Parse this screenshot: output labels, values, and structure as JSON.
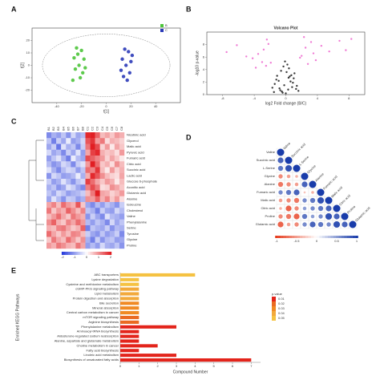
{
  "chart_data": [
    {
      "type": "scatter",
      "panel": "A",
      "xlabel": "t[1]",
      "ylabel": "t[2]",
      "xlim": [
        -60,
        60
      ],
      "ylim": [
        -30,
        30
      ],
      "xticks": [
        -40,
        -20,
        0,
        20,
        40
      ],
      "yticks": [
        -20,
        -10,
        0,
        10,
        20
      ],
      "series": [
        {
          "name": "B",
          "color": "#4cc43a",
          "x": [
            -24,
            -20,
            -26,
            -18,
            -22,
            -25,
            -19,
            -21,
            -27,
            -23,
            -17
          ],
          "y": [
            14,
            12,
            6,
            5,
            0,
            -3,
            -6,
            -10,
            -12,
            9,
            -2
          ]
        },
        {
          "name": "C",
          "color": "#2b3ab8",
          "x": [
            15,
            18,
            13,
            20,
            16,
            12,
            19,
            14,
            17,
            21
          ],
          "y": [
            13,
            11,
            5,
            3,
            0,
            -4,
            -6,
            -9,
            -12,
            8
          ]
        }
      ]
    },
    {
      "type": "scatter",
      "panel": "B",
      "title": "Volcano Plot",
      "xlabel": "log2 Fold change (B/C)",
      "ylabel": "-log10 p-value",
      "xlim": [
        -10,
        10
      ],
      "ylim": [
        0,
        10
      ],
      "xticks": [
        -8,
        -4,
        0,
        4,
        8
      ],
      "yticks": [
        0,
        2,
        4,
        6,
        8
      ],
      "series": [
        {
          "name": "ns",
          "color": "#222222",
          "x": [
            -0.5,
            0.3,
            -0.2,
            0.6,
            -0.8,
            1,
            -1.1,
            0.1,
            0.4,
            -0.4,
            0.8,
            -0.9,
            1.3,
            -1.4,
            0.2,
            -0.1,
            0.7,
            -0.6,
            1.6,
            -1.7,
            0.5,
            -0.3,
            0.9,
            -1.2,
            1.1,
            0,
            -0.7,
            1.4,
            -1.5,
            0.35
          ],
          "y": [
            0.5,
            0.8,
            1.5,
            2.1,
            1,
            2.6,
            3,
            3.6,
            4.2,
            0.3,
            1.2,
            2.2,
            0.9,
            1.7,
            4.8,
            5.3,
            3.1,
            3.8,
            0.6,
            1.1,
            2.9,
            4.5,
            1.9,
            2.4,
            3.4,
            0.2,
            0.7,
            1.4,
            0.4,
            2.7
          ]
        },
        {
          "name": "sig",
          "color": "#ee6fd0",
          "x": [
            -3.5,
            -2.8,
            -4.2,
            -2.2,
            -5,
            -3,
            -2.5,
            -6.2,
            -7.5,
            2.5,
            3.2,
            2,
            3.8,
            4.5,
            5.5,
            6.8,
            2.8,
            7.6,
            8.3,
            1.8,
            -1.9,
            2.3,
            -2.4,
            3.5,
            -3.8
          ],
          "y": [
            6.5,
            7.2,
            5.8,
            8.1,
            6.1,
            5.2,
            4.6,
            7.9,
            6.8,
            7.5,
            8.4,
            6.2,
            5.5,
            7.8,
            6.9,
            8.6,
            4.9,
            7.1,
            8.9,
            5.9,
            5.1,
            9.2,
            8.8,
            6.6,
            4.3
          ]
        }
      ]
    },
    {
      "type": "heatmap",
      "panel": "C",
      "columns": [
        "B1",
        "B2",
        "B3",
        "B4",
        "B5",
        "B6",
        "B7",
        "B8",
        "C1",
        "C2",
        "C3",
        "C4",
        "C5",
        "C6",
        "C7",
        "C8"
      ],
      "rows": [
        "Nicotinic acid",
        "Glycerol",
        "Malic acid",
        "Pyruvic acid",
        "Fumaric acid",
        "Citric acid",
        "Succinic acid",
        "Lactic acid",
        "Glucose 6-phosphate",
        "Aconitic acid",
        "Glutamic acid",
        "Alanine",
        "Isoleucine",
        "Cholesterol",
        "Valine",
        "Phenylalanine",
        "Serine",
        "Tyrosine",
        "Glycine",
        "Proline"
      ],
      "clim": [
        -2,
        2
      ],
      "cticks": [
        -2,
        -1,
        0,
        1,
        2
      ],
      "values": [
        [
          -1.2,
          -0.8,
          -1,
          -0.6,
          -1.1,
          -0.4,
          -0.9,
          -0.7,
          1.9,
          2,
          1.4,
          0.6,
          0.8,
          0.5,
          0.9,
          0.7
        ],
        [
          -0.6,
          -1.3,
          -0.5,
          -0.9,
          -0.2,
          -1,
          -0.8,
          -0.4,
          1.5,
          1.8,
          0.9,
          1.2,
          0.3,
          0.7,
          0.6,
          0.4
        ],
        [
          -0.9,
          -0.5,
          -1.4,
          -0.3,
          -0.8,
          -0.6,
          -1.2,
          -0.5,
          1.2,
          2,
          1.6,
          0.4,
          0.9,
          0.2,
          0.8,
          0.5
        ],
        [
          -0.4,
          -0.9,
          -0.7,
          -1.2,
          -0.5,
          -0.9,
          -0.3,
          -1,
          0.8,
          1.7,
          1.9,
          0.7,
          0.5,
          0.6,
          0.3,
          0.9
        ],
        [
          -1,
          -0.6,
          -0.3,
          -0.8,
          -1.3,
          -0.2,
          -0.7,
          -0.9,
          1.6,
          1.4,
          1.1,
          0.9,
          0.4,
          0.8,
          0.5,
          0.2
        ],
        [
          -0.7,
          -1.1,
          -0.9,
          -0.4,
          -0.6,
          -1.2,
          -0.5,
          -0.3,
          0.9,
          2,
          1.3,
          0.5,
          0.7,
          0.3,
          1,
          0.6
        ],
        [
          -0.3,
          -0.8,
          -1.2,
          -0.7,
          -0.4,
          -0.5,
          -1,
          -0.6,
          1.3,
          1.1,
          1.8,
          0.6,
          0.2,
          0.9,
          0.4,
          0.7
        ],
        [
          -1.1,
          -0.4,
          -0.6,
          -1,
          -0.9,
          -0.7,
          -0.2,
          -0.8,
          0.7,
          1.9,
          1.5,
          1,
          0.6,
          0.4,
          0.3,
          0.8
        ],
        [
          -0.5,
          -1,
          -0.8,
          -0.3,
          -0.7,
          -1.1,
          -0.6,
          -0.4,
          1.7,
          1.3,
          0.8,
          0.5,
          0.9,
          0.7,
          0.2,
          0.6
        ],
        [
          -0.8,
          -0.6,
          -1.1,
          -0.9,
          -0.3,
          -0.5,
          -0.9,
          -1.2,
          1.1,
          1.6,
          1.2,
          0.3,
          0.4,
          1,
          0.8,
          0.5
        ],
        [
          -0.6,
          -0.9,
          -0.4,
          -0.6,
          -1,
          -0.8,
          -0.7,
          -0.5,
          0.6,
          1.2,
          2,
          0.8,
          0.7,
          0.4,
          0.6,
          0.9
        ],
        [
          -0.9,
          -0.3,
          -0.7,
          -1.1,
          -0.5,
          -0.6,
          -1,
          -0.8,
          1,
          0.9,
          1.4,
          0.7,
          1.1,
          0.5,
          0.9,
          0.3
        ],
        [
          0.8,
          1.1,
          0.6,
          1.3,
          0.9,
          0.7,
          1.5,
          0.5,
          -0.9,
          -1.2,
          -0.7,
          -1,
          -0.6,
          -0.8,
          -1.1,
          -0.5
        ],
        [
          1.2,
          0.5,
          0.9,
          0.7,
          1.4,
          1,
          0.6,
          1.1,
          -0.6,
          -0.8,
          -1.3,
          -0.5,
          -0.9,
          -1,
          -0.4,
          -0.7
        ],
        [
          0.6,
          0.9,
          1.3,
          0.8,
          0.5,
          1.2,
          0.9,
          0.7,
          -1.1,
          -0.5,
          -0.9,
          -1.2,
          -0.3,
          -0.7,
          -0.8,
          -1
        ],
        [
          1,
          1.4,
          0.7,
          0.5,
          1.1,
          0.8,
          1.3,
          0.9,
          -0.7,
          -1,
          -0.6,
          -0.8,
          -1.2,
          -0.4,
          -0.9,
          -0.6
        ],
        [
          0.7,
          0.6,
          1.1,
          1.2,
          0.8,
          0.5,
          0.7,
          1.4,
          -1.3,
          -0.6,
          -0.8,
          -0.9,
          -0.5,
          -1.1,
          -0.7,
          -0.8
        ],
        [
          1.3,
          0.8,
          0.5,
          0.9,
          0.6,
          1.1,
          1,
          0.6,
          -0.5,
          -0.9,
          -1.1,
          -0.6,
          -1,
          -0.8,
          -0.5,
          -1.2
        ],
        [
          0.5,
          1.2,
          0.8,
          0.6,
          1.3,
          0.9,
          0.5,
          1,
          -0.8,
          -1.3,
          -0.5,
          -1.1,
          -0.7,
          -0.6,
          -1,
          -0.9
        ],
        [
          0.9,
          0.7,
          1.2,
          1,
          0.7,
          0.6,
          1.2,
          0.8,
          -1,
          -0.7,
          -1,
          -0.4,
          -0.8,
          -0.9,
          -0.6,
          -1.1
        ]
      ]
    },
    {
      "type": "corr",
      "panel": "D",
      "variables": [
        "Valine",
        "Succinic acid",
        "L-Serine",
        "Glycine",
        "Alanine",
        "Fumaric acid",
        "Malic acid",
        "Citric acid",
        "Proline",
        "Glutamic acid"
      ],
      "clim": [
        -1,
        1
      ],
      "cticks": [
        -1,
        -0.5,
        0,
        0.5,
        1
      ],
      "values": [
        [
          1
        ],
        [
          0.8,
          1
        ],
        [
          0.7,
          0.9,
          1
        ],
        [
          -0.6,
          -0.5,
          -0.4,
          1
        ],
        [
          -0.7,
          -0.6,
          -0.5,
          0.8,
          1
        ],
        [
          0.6,
          0.7,
          0.8,
          -0.3,
          -0.4,
          1
        ],
        [
          -0.5,
          -0.6,
          -0.7,
          0.6,
          0.7,
          0.9,
          1
        ],
        [
          -0.4,
          -0.8,
          -0.6,
          0.5,
          0.6,
          0.7,
          0.8,
          1
        ],
        [
          -0.6,
          -0.7,
          -0.8,
          0.7,
          0.5,
          0.6,
          0.9,
          0.8,
          1
        ],
        [
          -0.8,
          -0.5,
          -0.6,
          0.6,
          0.8,
          0.7,
          0.6,
          0.9,
          0.8,
          1
        ]
      ]
    },
    {
      "type": "barh",
      "panel": "E",
      "xlabel": "Compound Number",
      "ylabel": "Enriched KEGG Pathways",
      "xlim": [
        0,
        7.5
      ],
      "xticks": [
        0,
        1,
        2,
        3,
        4,
        5,
        6,
        7
      ],
      "categories": [
        "ABC transporters",
        "Lysine degradation",
        "Cysteine and methionine metabolism",
        "cGMP-PKG signaling pathway",
        "Lipid metabolism",
        "Protein digestion and absorption",
        "Bile secretion",
        "Mineral absorption",
        "Central carbon metabolism in cancer",
        "mTOR signaling pathway",
        "Arginine biosynthesis",
        "Phenylalanine metabolism",
        "Aminoacyl-tRNA biosynthesis",
        "Aldosterone-regulated sodium reabsorption",
        "Alanine, aspartate and glutamate metabolism",
        "Choline metabolism in cancer",
        "Fatty acid biosynthesis",
        "Linoleic acid metabolism",
        "Biosynthesis of unsaturated fatty acids"
      ],
      "values": [
        4,
        1,
        1,
        1,
        1,
        1,
        1,
        1,
        1,
        1,
        1,
        3,
        1,
        1,
        1,
        2,
        1,
        3,
        7
      ],
      "colors": [
        "#f5c242",
        "#f5c242",
        "#f5c242",
        "#f2a93b",
        "#f2a93b",
        "#f2a93b",
        "#f08a24",
        "#f08a24",
        "#f08a24",
        "#ea6a22",
        "#ea6a22",
        "#e3241b",
        "#e3241b",
        "#e3241b",
        "#e3241b",
        "#e3241b",
        "#e3241b",
        "#e3241b",
        "#e3241b"
      ],
      "legend_title": "p.value",
      "legend": [
        {
          "label": "0.01",
          "color": "#e3241b"
        },
        {
          "label": "0.02",
          "color": "#ea6a22"
        },
        {
          "label": "0.03",
          "color": "#f08a24"
        },
        {
          "label": "0.04",
          "color": "#f2a93b"
        },
        {
          "label": "0.05",
          "color": "#f5c242"
        }
      ]
    }
  ]
}
